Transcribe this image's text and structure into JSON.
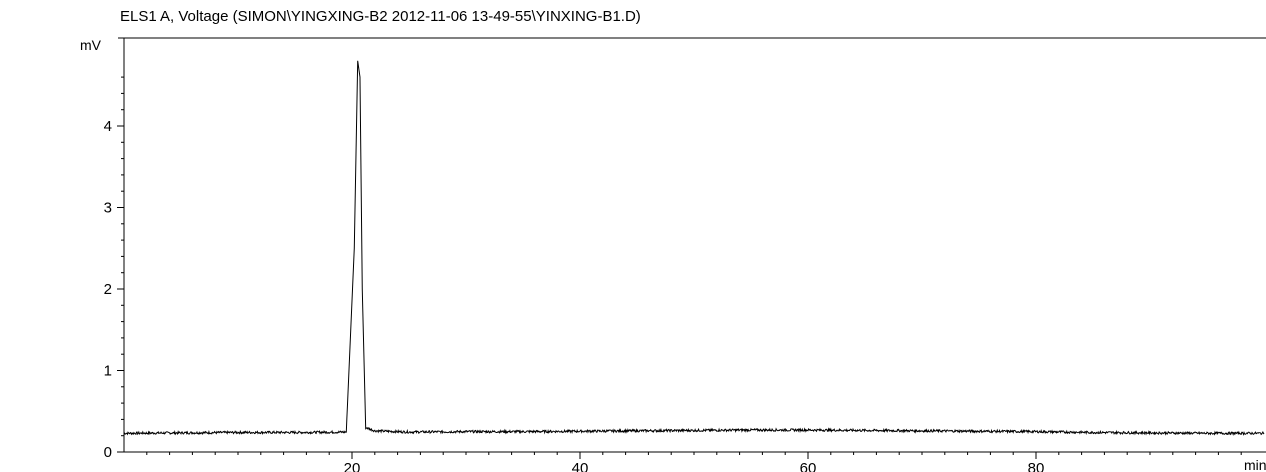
{
  "chart_data": {
    "type": "line",
    "title": "ELS1 A, Voltage (SIMON\\YINGXING-B2 2012-11-06 13-49-55\\YINXING-B1.D)",
    "xlabel": "min",
    "ylabel": "mV",
    "xlim": [
      0,
      100
    ],
    "ylim": [
      0,
      5
    ],
    "x_ticks": [
      20,
      40,
      60,
      80
    ],
    "y_ticks": [
      0,
      1,
      2,
      3,
      4
    ],
    "grid": false,
    "series": [
      {
        "x": [
          0,
          5,
          10,
          15,
          19.5,
          20.2,
          20.5,
          20.7,
          20.9,
          21.2,
          22,
          25,
          30,
          35,
          40,
          45,
          50,
          55,
          60,
          65,
          70,
          75,
          80,
          85,
          90,
          95,
          100
        ],
        "y": [
          0.23,
          0.235,
          0.24,
          0.24,
          0.245,
          2.5,
          4.8,
          4.6,
          2.0,
          0.3,
          0.26,
          0.245,
          0.25,
          0.25,
          0.255,
          0.26,
          0.265,
          0.27,
          0.27,
          0.265,
          0.26,
          0.255,
          0.25,
          0.24,
          0.235,
          0.23,
          0.23
        ]
      }
    ]
  }
}
